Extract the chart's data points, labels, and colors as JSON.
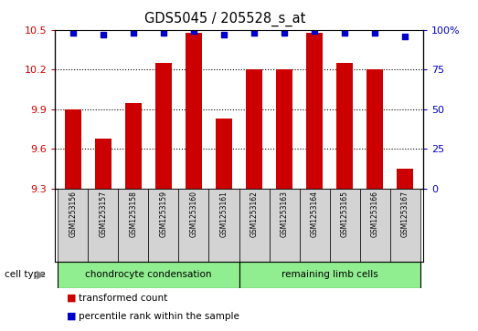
{
  "title": "GDS5045 / 205528_s_at",
  "samples": [
    "GSM1253156",
    "GSM1253157",
    "GSM1253158",
    "GSM1253159",
    "GSM1253160",
    "GSM1253161",
    "GSM1253162",
    "GSM1253163",
    "GSM1253164",
    "GSM1253165",
    "GSM1253166",
    "GSM1253167"
  ],
  "bar_values": [
    9.9,
    9.68,
    9.95,
    10.25,
    10.48,
    9.83,
    10.2,
    10.2,
    10.48,
    10.25,
    10.2,
    9.45
  ],
  "percentile_values": [
    98,
    97,
    98,
    98,
    99,
    97,
    98,
    98,
    99,
    98,
    98,
    96
  ],
  "bar_color": "#cc0000",
  "dot_color": "#0000cc",
  "ylim_left": [
    9.3,
    10.5
  ],
  "ylim_right": [
    0,
    100
  ],
  "yticks_left": [
    9.3,
    9.6,
    9.9,
    10.2,
    10.5
  ],
  "yticks_right": [
    0,
    25,
    50,
    75,
    100
  ],
  "ytick_labels_right": [
    "0",
    "25",
    "50",
    "75",
    "100%"
  ],
  "group1_label": "chondrocyte condensation",
  "group2_label": "remaining limb cells",
  "group1_count": 6,
  "group2_count": 6,
  "cell_type_row_color": "#90ee90",
  "label_area_color": "#d3d3d3",
  "legend_items": [
    {
      "color": "#cc0000",
      "label": "transformed count"
    },
    {
      "color": "#0000cc",
      "label": "percentile rank within the sample"
    }
  ],
  "cell_type_label": "cell type",
  "bar_width": 0.55,
  "bar_baseline": 9.3
}
